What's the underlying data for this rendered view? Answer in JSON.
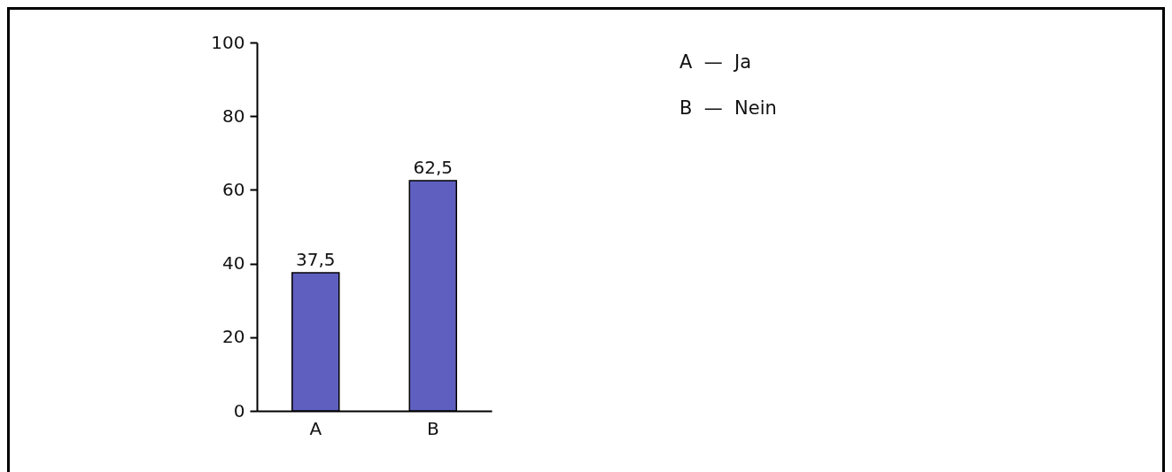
{
  "chart_data": {
    "type": "bar",
    "categories": [
      "A",
      "B"
    ],
    "values": [
      37.5,
      62.5
    ],
    "color": "#5f5fbf",
    "value_labels": [
      "37,5",
      "62,5"
    ],
    "ylim": [
      0,
      100
    ],
    "yticks": [
      0,
      20,
      40,
      60,
      80,
      100
    ],
    "grid": false,
    "annotations": [
      "A  —  Ja",
      "B  —  Nein"
    ]
  }
}
